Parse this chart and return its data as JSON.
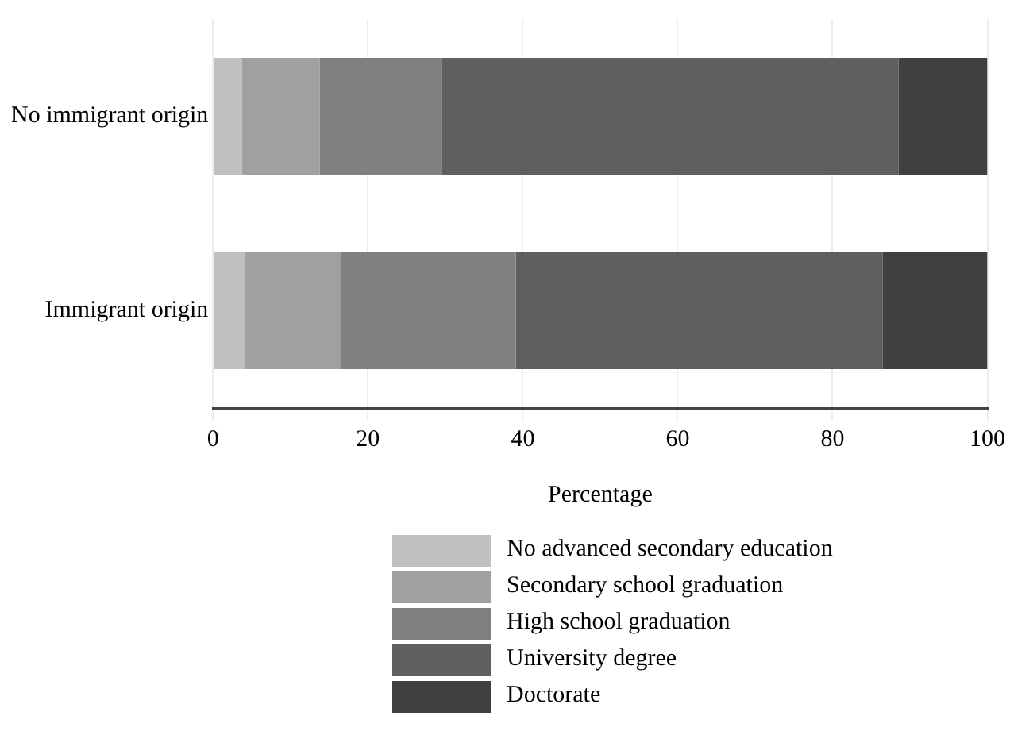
{
  "chart_data": {
    "type": "bar",
    "orientation": "horizontal",
    "stacked": true,
    "xlabel": "Percentage",
    "categories": [
      "No immigrant origin",
      "Immigrant origin"
    ],
    "series": [
      {
        "name": "No advanced secondary education",
        "color": "#c0c0c0",
        "values": [
          3.7,
          4.1
        ]
      },
      {
        "name": "Secondary school graduation",
        "color": "#a0a0a0",
        "values": [
          10.1,
          12.3
        ]
      },
      {
        "name": "High school graduation",
        "color": "#808080",
        "values": [
          15.8,
          22.7
        ]
      },
      {
        "name": "University degree",
        "color": "#5f5f5f",
        "values": [
          58.9,
          47.4
        ]
      },
      {
        "name": "Doctorate",
        "color": "#404040",
        "values": [
          11.5,
          13.5
        ]
      }
    ],
    "xlim": [
      0,
      100
    ],
    "xticks": [
      0,
      20,
      40,
      60,
      80,
      100
    ],
    "grid": "x",
    "legend": "bottom"
  }
}
